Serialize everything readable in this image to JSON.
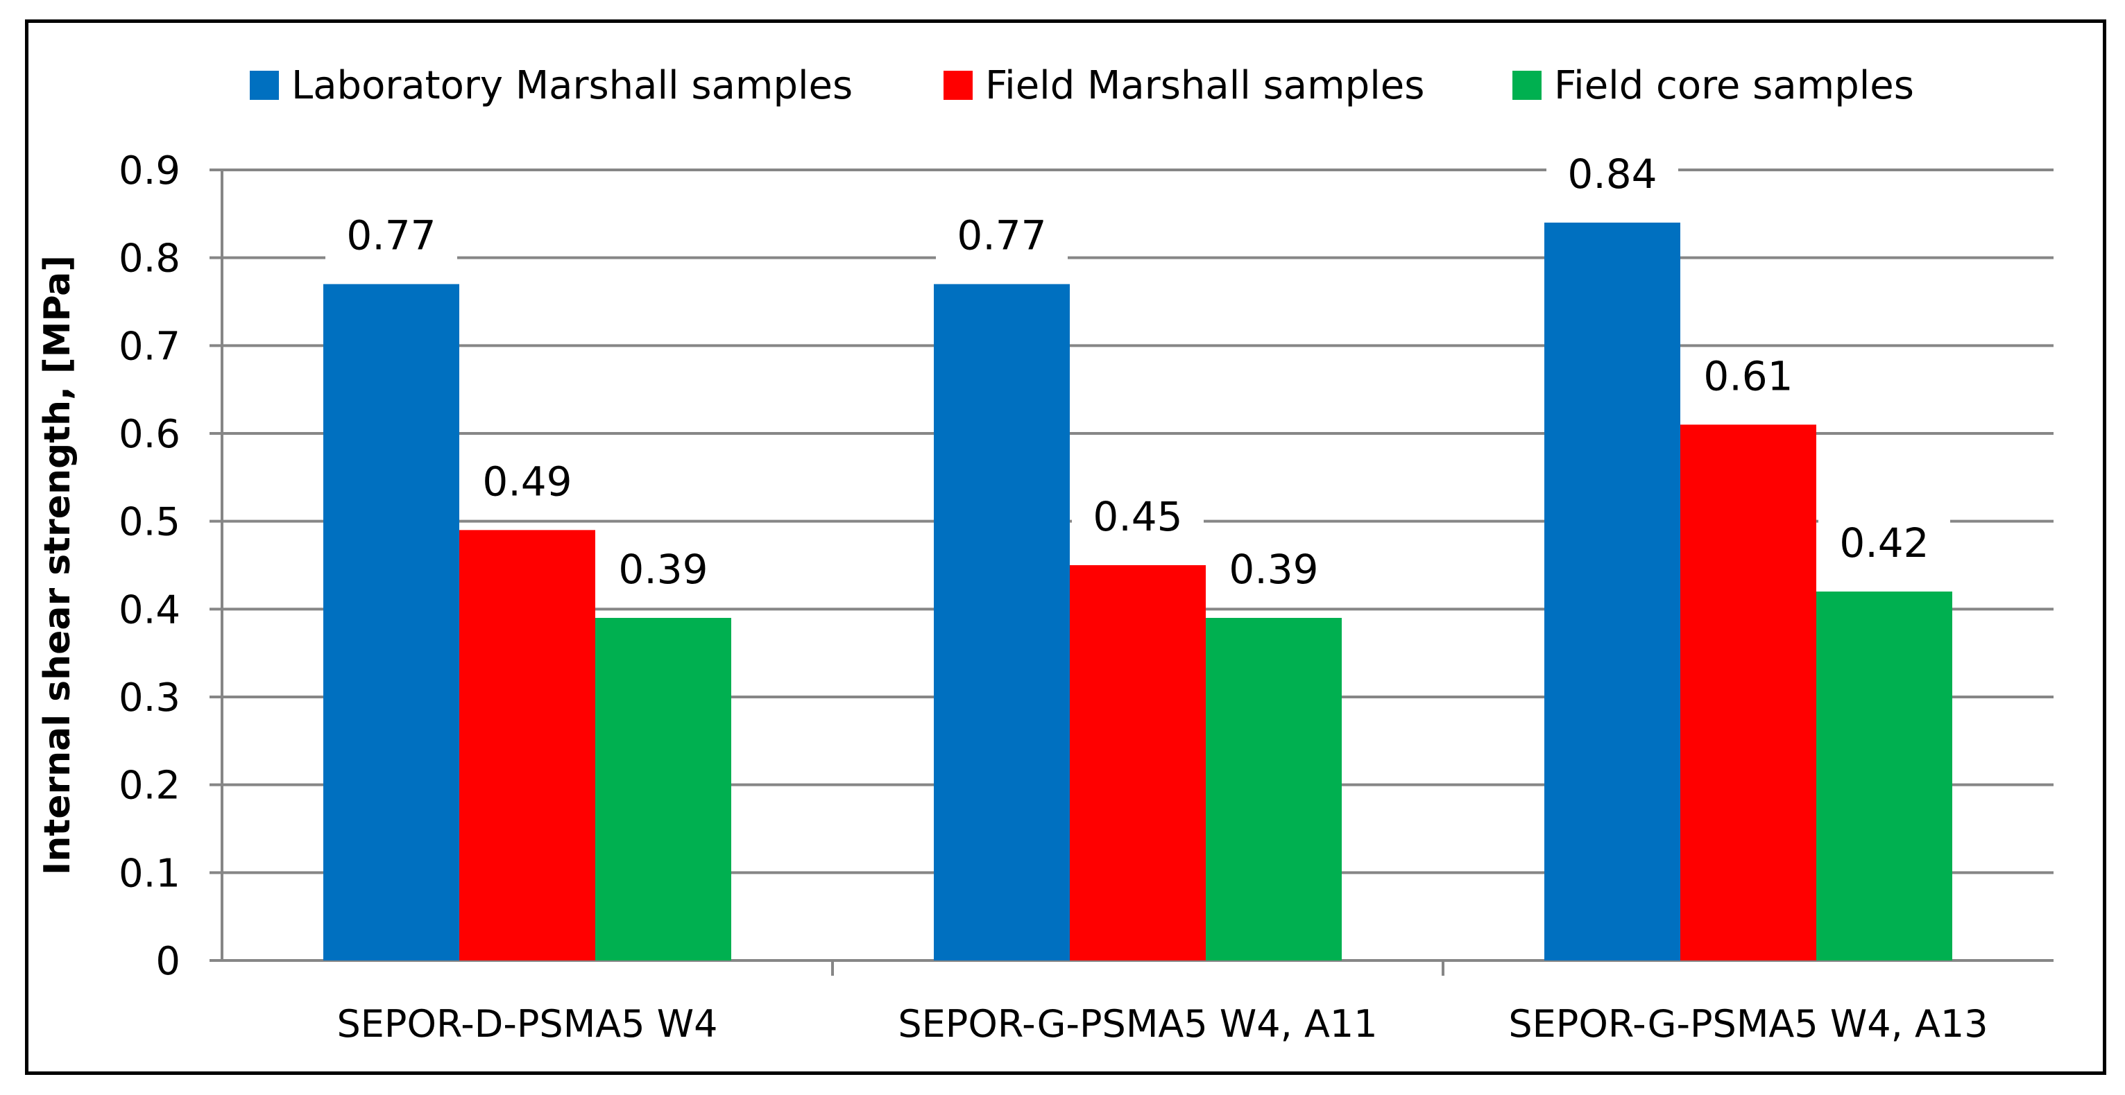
{
  "chart_data": {
    "type": "bar",
    "title": "",
    "xlabel": "",
    "ylabel": "Internal shear strength, [MPa]",
    "ylim": [
      0,
      0.9
    ],
    "ytick_step": 0.1,
    "yticks": [
      "0",
      "0.1",
      "0.2",
      "0.3",
      "0.4",
      "0.5",
      "0.6",
      "0.7",
      "0.8",
      "0.9"
    ],
    "grid": true,
    "legend_position": "top",
    "categories": [
      "SEPOR-D-PSMA5 W4",
      "SEPOR-G-PSMA5 W4, A11",
      "SEPOR-G-PSMA5 W4, A13"
    ],
    "series": [
      {
        "name": "Laboratory Marshall samples",
        "color": "#0070C0",
        "values": [
          0.77,
          0.77,
          0.84
        ],
        "labels": [
          "0.77",
          "0.77",
          "0.84"
        ]
      },
      {
        "name": "Field Marshall samples",
        "color": "#FF0000",
        "values": [
          0.49,
          0.45,
          0.61
        ],
        "labels": [
          "0.49",
          "0.45",
          "0.61"
        ]
      },
      {
        "name": "Field core samples",
        "color": "#00B050",
        "values": [
          0.39,
          0.39,
          0.42
        ],
        "labels": [
          "0.39",
          "0.39",
          "0.42"
        ]
      }
    ]
  }
}
